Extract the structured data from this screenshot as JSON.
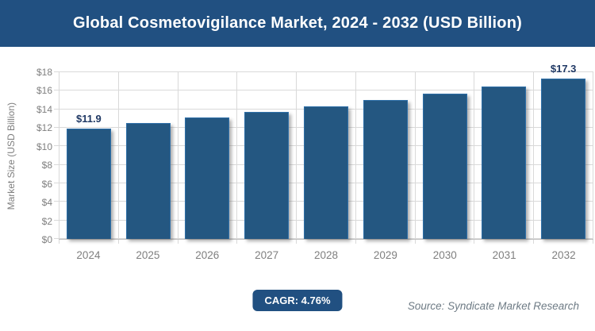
{
  "banner": {
    "title": "Global Cosmetovigilance Market, 2024 - 2032 (USD Billion)"
  },
  "chart_data": {
    "type": "bar",
    "title": "Global Cosmetovigilance Market, 2024 - 2032 (USD Billion)",
    "categories": [
      "2024",
      "2025",
      "2026",
      "2027",
      "2028",
      "2029",
      "2030",
      "2031",
      "2032"
    ],
    "values": [
      11.9,
      12.5,
      13.1,
      13.7,
      14.3,
      15.0,
      15.7,
      16.5,
      17.3
    ],
    "data_labels": [
      "$11.9",
      null,
      null,
      null,
      null,
      null,
      null,
      null,
      "$17.3"
    ],
    "xlabel": "",
    "ylabel": "Market Size (USD Billion)",
    "ylim": [
      0,
      18
    ],
    "ytick_labels": [
      "$0",
      "$2",
      "$4",
      "$6",
      "$8",
      "$10",
      "$12",
      "$14",
      "$16",
      "$18"
    ],
    "grid": "horizontal and vertical gridlines",
    "legend": "none"
  },
  "footer": {
    "cagr_label": "CAGR: 4.76%",
    "source": "Source: Syndicate Market Research"
  },
  "colors": {
    "brand": "#215081",
    "bar": "#245781",
    "bar_border": "#2e6fa8",
    "grid": "#d9d9d9",
    "axis_line": "#bfbfbf",
    "axis_text": "#7f7f7f",
    "value_label": "#1f3864",
    "source_text": "#6e7b85"
  }
}
